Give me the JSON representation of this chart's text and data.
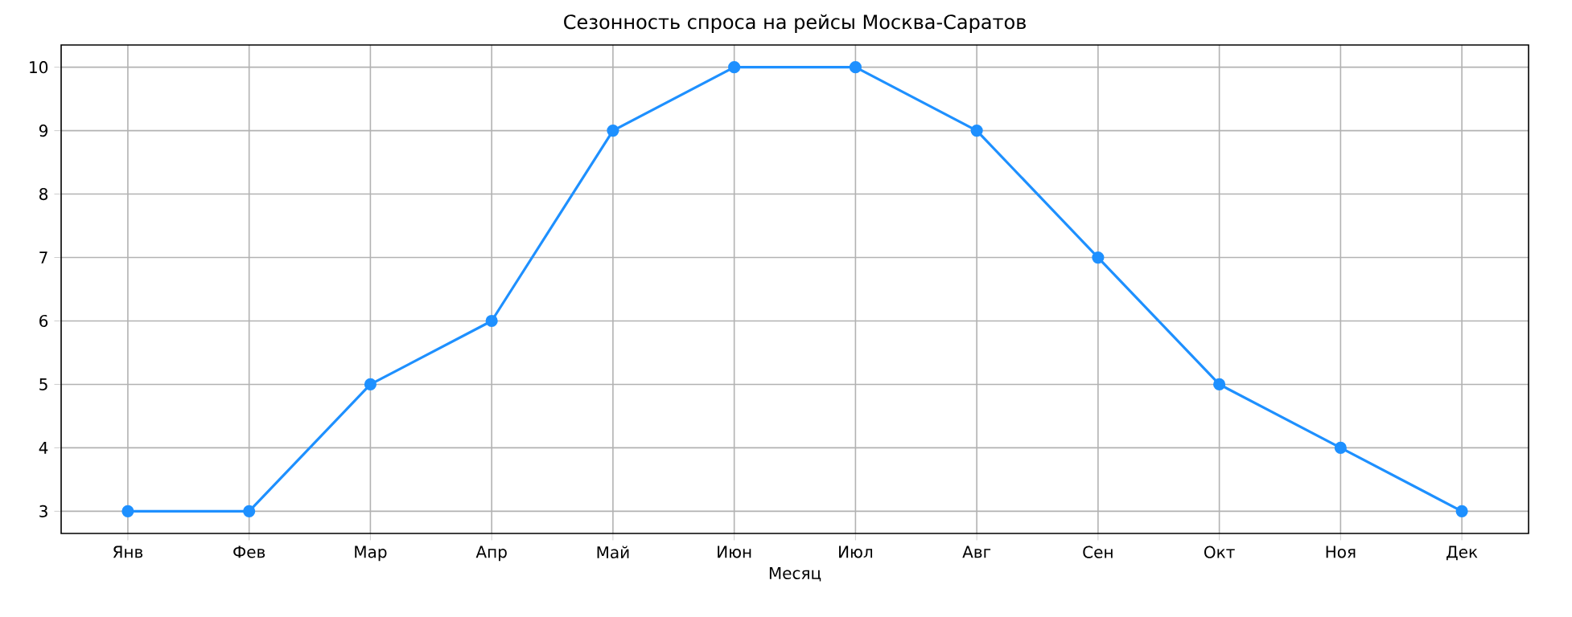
{
  "chart_data": {
    "type": "line",
    "title": "Сезонность спроса на рейсы Москва-Саратов",
    "xlabel": "Месяц",
    "categories": [
      "Янв",
      "Фев",
      "Мар",
      "Апр",
      "Май",
      "Июн",
      "Июл",
      "Авг",
      "Сен",
      "Окт",
      "Ноя",
      "Дек"
    ],
    "series": [
      {
        "color": "#1e90ff",
        "values": [
          3,
          3,
          5,
          6,
          9,
          10,
          10,
          9,
          7,
          5,
          4,
          3
        ]
      }
    ],
    "ylim": [
      2.65,
      10.35
    ],
    "yticks": [
      3,
      4,
      5,
      6,
      7,
      8,
      9,
      10
    ],
    "grid": true,
    "marker": "circle",
    "line_style": "solid"
  }
}
